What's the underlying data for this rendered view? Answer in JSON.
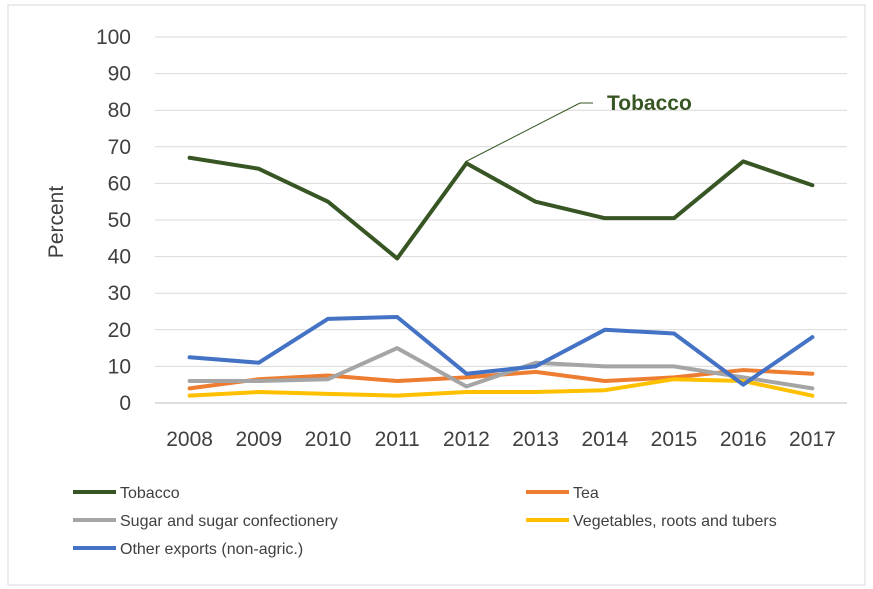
{
  "chart_data": {
    "type": "line",
    "title": "",
    "xlabel": "",
    "ylabel": "Percent",
    "ylim": [
      0,
      100
    ],
    "yticks": [
      "0",
      "10",
      "20",
      "30",
      "40",
      "50",
      "60",
      "70",
      "80",
      "90",
      "100"
    ],
    "categories": [
      "2008",
      "2009",
      "2010",
      "2011",
      "2012",
      "2013",
      "2014",
      "2015",
      "2016",
      "2017"
    ],
    "grid": true,
    "legend_position": "bottom",
    "series": [
      {
        "name": "Tobacco",
        "color": "#375623",
        "values": [
          67,
          64,
          55,
          39.5,
          65.5,
          55,
          50.5,
          50.5,
          66,
          59.5
        ]
      },
      {
        "name": "Tea",
        "color": "#ED7D31",
        "values": [
          4,
          6.5,
          7.5,
          6,
          7,
          8.5,
          6,
          7,
          9,
          8
        ]
      },
      {
        "name": "Sugar and sugar confectionery",
        "color": "#A5A5A5",
        "values": [
          6,
          6,
          6.5,
          15,
          4.5,
          11,
          10,
          10,
          7,
          4
        ]
      },
      {
        "name": "Vegetables, roots and tubers",
        "color": "#FFC000",
        "values": [
          2,
          3,
          2.5,
          2,
          3,
          3,
          3.5,
          6.5,
          6,
          2
        ]
      },
      {
        "name": "Other exports (non-agric.)",
        "color": "#4472C4",
        "values": [
          12.5,
          11,
          23,
          23.5,
          8,
          10,
          20,
          19,
          5,
          18
        ]
      }
    ],
    "annotation": {
      "text": "Tobacco",
      "series": "Tobacco",
      "x": "2012",
      "y": 65.5
    }
  }
}
